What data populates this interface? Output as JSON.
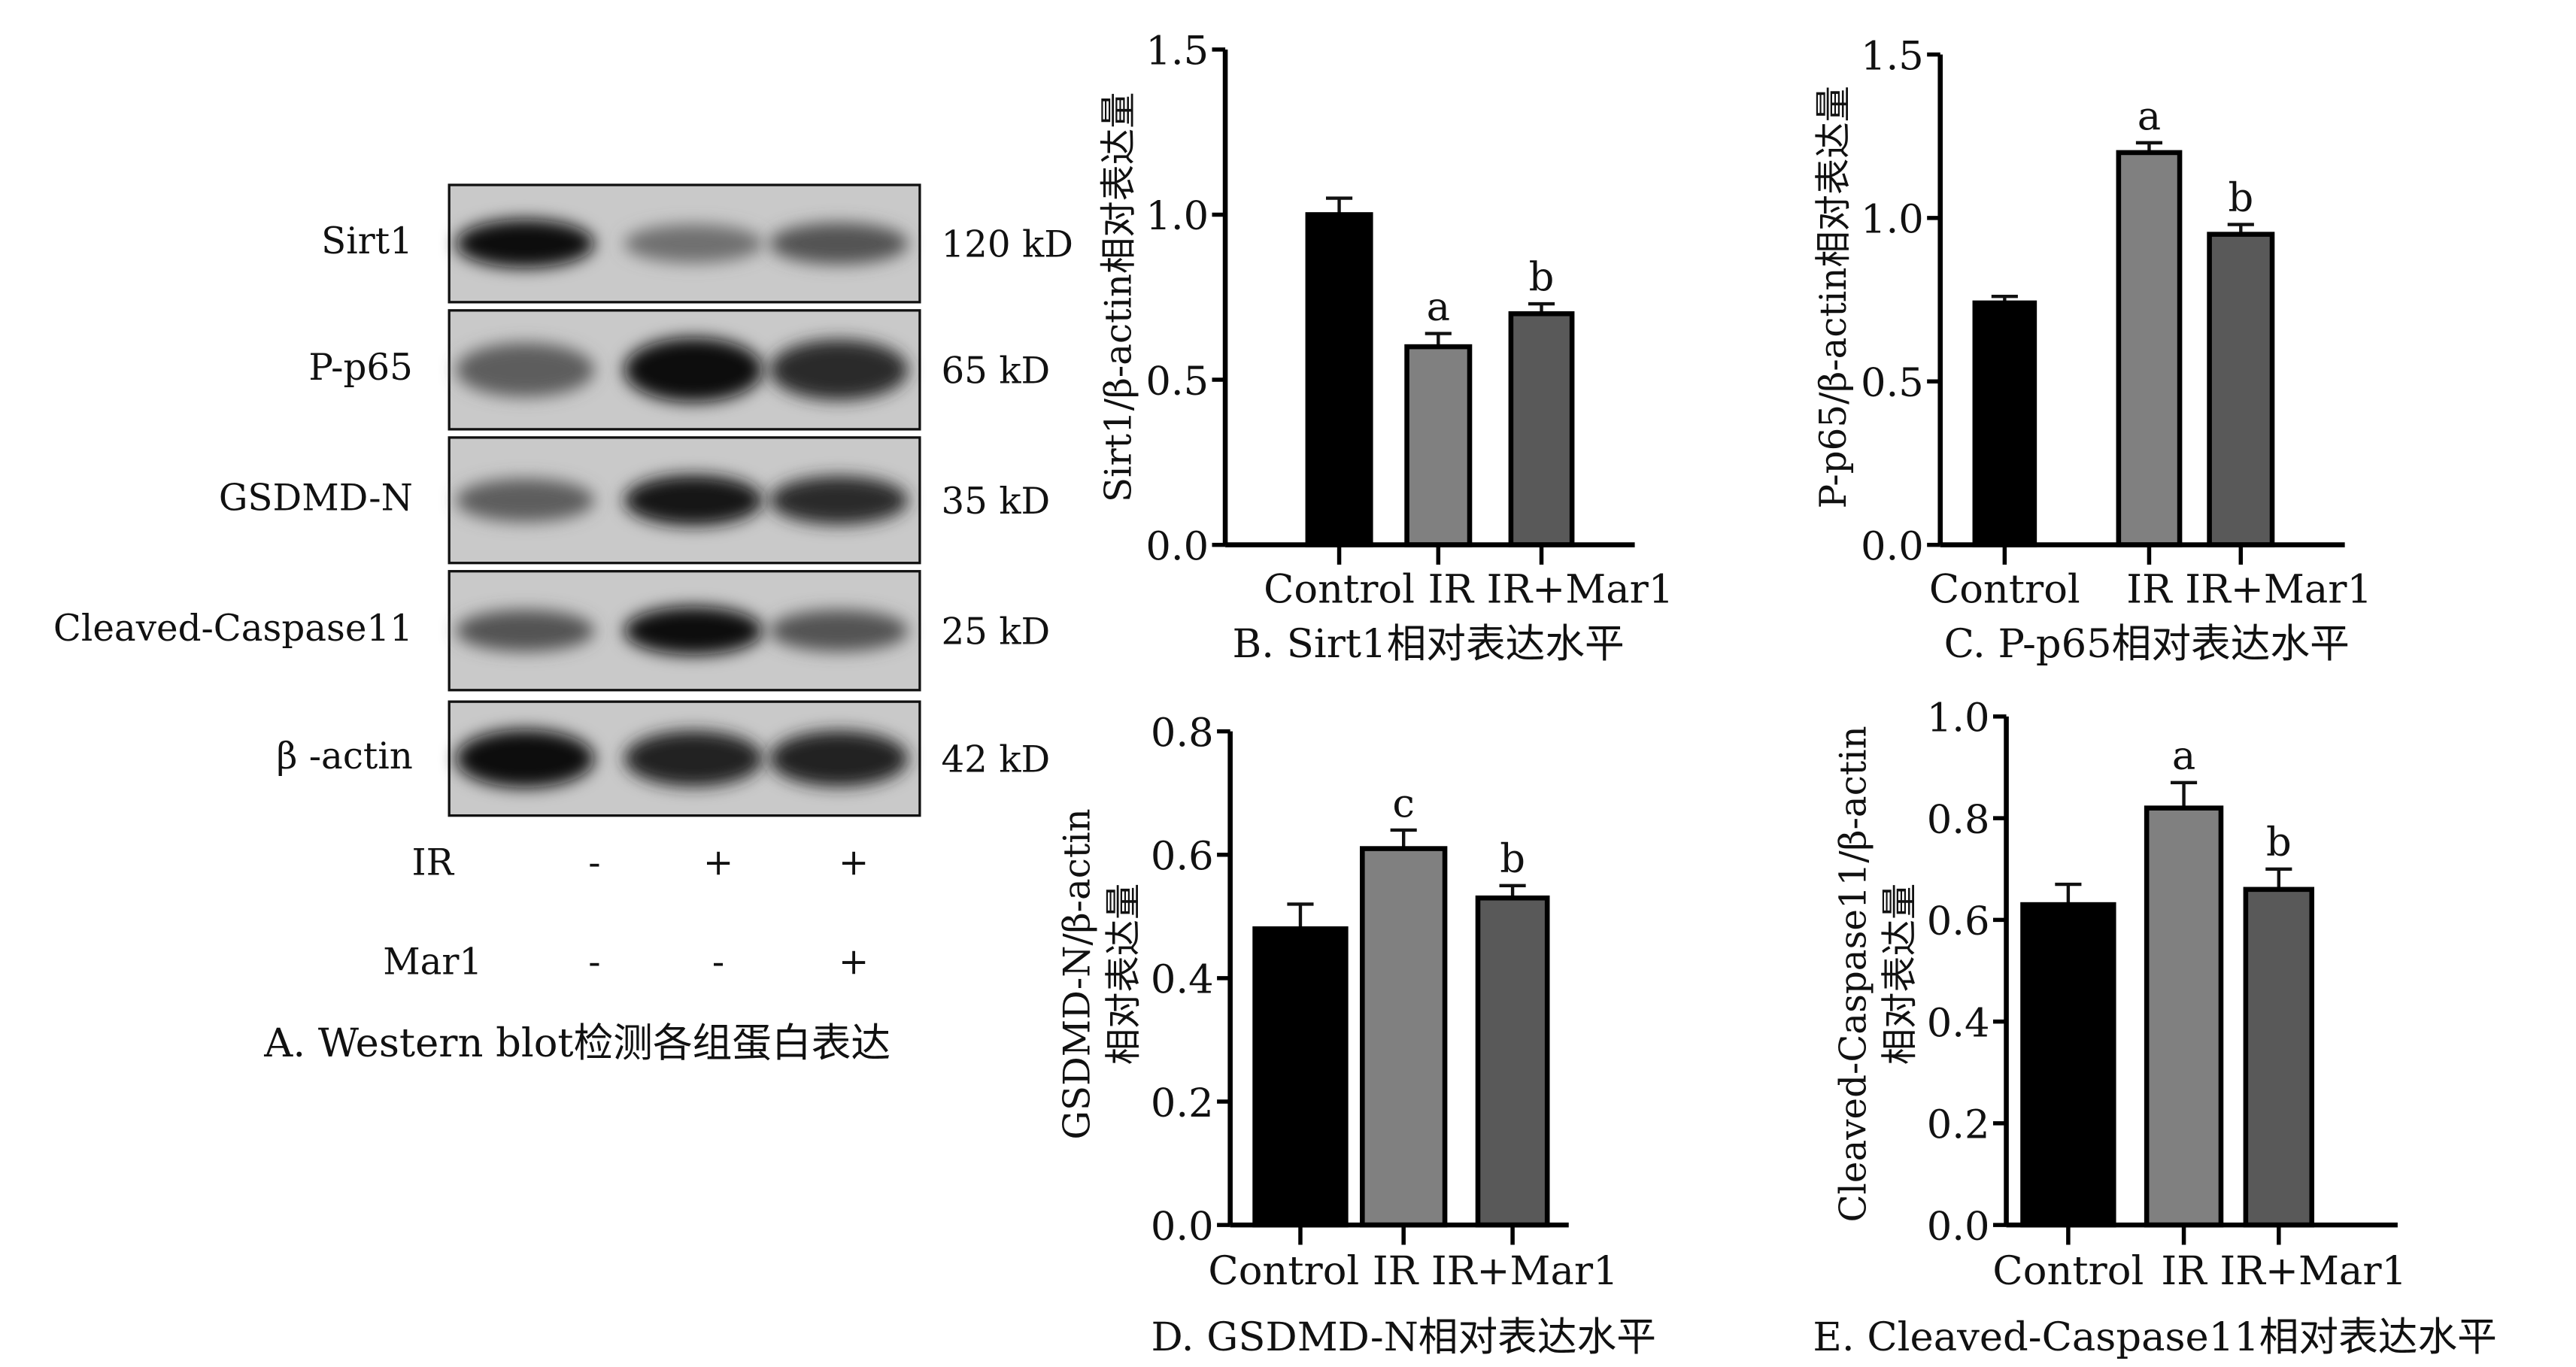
{
  "panel_a": {
    "proteins": [
      {
        "name": "Sirt1",
        "size": "120 kD"
      },
      {
        "name": "P-p65",
        "size": "65 kD"
      },
      {
        "name": "GSDMD-N",
        "size": "35 kD"
      },
      {
        "name": "Cleaved-Caspase11",
        "size": "25 kD"
      },
      {
        "name": "β -actin",
        "size": "42 kD"
      }
    ],
    "conditions": [
      {
        "label": "IR",
        "values": [
          "-",
          "+",
          "+"
        ]
      },
      {
        "label": "Mar1",
        "values": [
          "-",
          "-",
          "+"
        ]
      }
    ],
    "caption": "A. Western blot检测各组蛋白表达"
  },
  "chart_data": [
    {
      "type": "bar",
      "panel": "B",
      "categories": [
        "Control",
        "IR",
        "IR+Mar1"
      ],
      "values": [
        1.0,
        0.6,
        0.7
      ],
      "errors": [
        0.05,
        0.04,
        0.03
      ],
      "annotations": [
        "",
        "a",
        "b"
      ],
      "ylabel": "Sirt1/β-actin相对表达量",
      "ylim": [
        0,
        1.5
      ],
      "yticks": [
        "0.0",
        "0.5",
        "1.0",
        "1.5"
      ],
      "caption": "B. Sirt1相对表达水平"
    },
    {
      "type": "bar",
      "panel": "C",
      "categories": [
        "Control",
        "IR",
        "IR+Mar1"
      ],
      "values": [
        0.74,
        1.2,
        0.95
      ],
      "errors": [
        0.02,
        0.03,
        0.03
      ],
      "annotations": [
        "",
        "a",
        "b"
      ],
      "ylabel": "P-p65/β-actin相对表达量",
      "ylim": [
        0,
        1.5
      ],
      "yticks": [
        "0.0",
        "0.5",
        "1.0",
        "1.5"
      ],
      "caption": "C. P-p65相对表达水平"
    },
    {
      "type": "bar",
      "panel": "D",
      "categories": [
        "Control",
        "IR",
        "IR+Mar1"
      ],
      "values": [
        0.48,
        0.61,
        0.53
      ],
      "errors": [
        0.04,
        0.03,
        0.02
      ],
      "annotations": [
        "",
        "c",
        "b"
      ],
      "ylabel": "GSDMD-N/β-actin",
      "ylabel2": "相对表达量",
      "ylim": [
        0,
        0.8
      ],
      "yticks": [
        "0.0",
        "0.2",
        "0.4",
        "0.6",
        "0.8"
      ],
      "caption": "D. GSDMD-N相对表达水平"
    },
    {
      "type": "bar",
      "panel": "E",
      "categories": [
        "Control",
        "IR",
        "IR+Mar1"
      ],
      "values": [
        0.63,
        0.82,
        0.66
      ],
      "errors": [
        0.04,
        0.05,
        0.04
      ],
      "annotations": [
        "",
        "a",
        "b"
      ],
      "ylabel": "Cleaved-Caspase11/β-actin",
      "ylabel2": "相对表达量",
      "ylim": [
        0,
        1.0
      ],
      "yticks": [
        "0.0",
        "0.2",
        "0.4",
        "0.6",
        "0.8",
        "1.0"
      ],
      "caption": "E. Cleaved-Caspase11相对表达水平"
    }
  ],
  "colors": {
    "control": "#000000",
    "ir": "#808080",
    "ir_mar1": "#595959"
  }
}
